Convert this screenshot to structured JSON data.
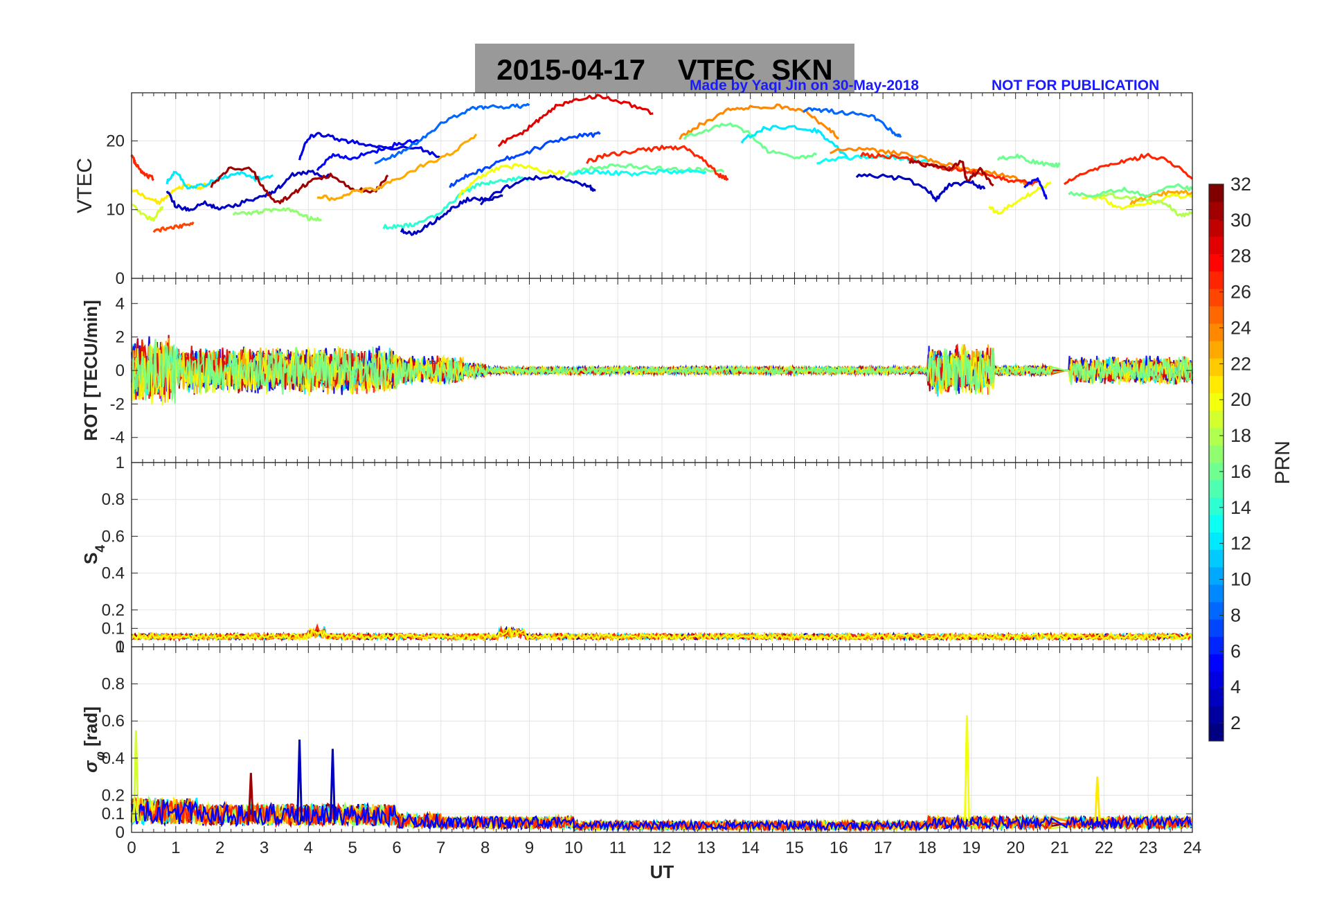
{
  "header": {
    "title": "2015-04-17    VTEC  SKN",
    "credit": "Made by Yaqi Jin on 30-May-2018",
    "notice": "NOT FOR PUBLICATION"
  },
  "colors": {
    "title_box": "#999999",
    "credit_text": "#1a1aff",
    "colormap": "jet"
  },
  "chart_data": {
    "type": "line",
    "x": {
      "label": "UT",
      "lim": [
        0,
        24
      ],
      "ticks": [
        0,
        1,
        2,
        3,
        4,
        5,
        6,
        7,
        8,
        9,
        10,
        11,
        12,
        13,
        14,
        15,
        16,
        17,
        18,
        19,
        20,
        21,
        22,
        23,
        24
      ]
    },
    "colorbar": {
      "label": "PRN",
      "lim": [
        1,
        32
      ],
      "ticks": [
        2,
        4,
        6,
        8,
        10,
        12,
        14,
        16,
        18,
        20,
        22,
        24,
        26,
        28,
        30,
        32
      ]
    },
    "panels": [
      {
        "id": "vtec",
        "ylabel": "VTEC",
        "ylim": [
          0,
          27
        ],
        "yticks": [
          0,
          10,
          20
        ],
        "grid": true
      },
      {
        "id": "rot",
        "ylabel": "ROT [TECU/min]",
        "ylim": [
          -5.5,
          5.5
        ],
        "yticks": [
          -4,
          -2,
          0,
          2,
          4
        ],
        "grid": true
      },
      {
        "id": "s4",
        "ylabel": "S4",
        "ylim": [
          0,
          1
        ],
        "yticks": [
          0,
          0.1,
          0.2,
          0.4,
          0.6,
          0.8,
          1
        ],
        "grid": true
      },
      {
        "id": "sigphi",
        "ylabel": "σφ [rad]",
        "ylim": [
          0,
          1
        ],
        "yticks": [
          0,
          0.1,
          0.2,
          0.4,
          0.6,
          0.8,
          1
        ],
        "grid": true
      }
    ],
    "vtec_series": [
      {
        "prn": 27,
        "points": [
          [
            0,
            18
          ],
          [
            0.1,
            16.5
          ],
          [
            0.3,
            15
          ],
          [
            0.5,
            14.5
          ]
        ]
      },
      {
        "prn": 26,
        "points": [
          [
            0.5,
            7
          ],
          [
            0.8,
            7.2
          ],
          [
            1.1,
            7.5
          ],
          [
            1.4,
            8.2
          ]
        ]
      },
      {
        "prn": 19,
        "points": [
          [
            0,
            11
          ],
          [
            0.3,
            9
          ],
          [
            0.5,
            8.5
          ],
          [
            0.7,
            10.5
          ]
        ]
      },
      {
        "prn": 21,
        "points": [
          [
            0,
            13
          ],
          [
            0.3,
            12
          ],
          [
            0.6,
            11
          ],
          [
            0.9,
            12.5
          ],
          [
            1.2,
            13.5
          ],
          [
            1.5,
            13
          ],
          [
            1.8,
            14
          ]
        ]
      },
      {
        "prn": 3,
        "points": [
          [
            0.8,
            13
          ],
          [
            1,
            10.5
          ],
          [
            1.3,
            10
          ],
          [
            1.7,
            11
          ],
          [
            2,
            10
          ],
          [
            2.5,
            11
          ],
          [
            3,
            12
          ],
          [
            3.3,
            13
          ],
          [
            3.6,
            15
          ],
          [
            4,
            15.5
          ],
          [
            4.5,
            14.8
          ]
        ]
      },
      {
        "prn": 12,
        "points": [
          [
            0.8,
            14
          ],
          [
            1,
            15.5
          ],
          [
            1.3,
            13
          ],
          [
            1.6,
            13.5
          ],
          [
            2,
            14.5
          ],
          [
            2.4,
            15.5
          ],
          [
            2.8,
            14.5
          ],
          [
            3.2,
            15
          ]
        ]
      },
      {
        "prn": 31,
        "points": [
          [
            1.8,
            13.5
          ],
          [
            2.2,
            16
          ],
          [
            2.7,
            16
          ],
          [
            3,
            13
          ],
          [
            3.3,
            11
          ],
          [
            3.6,
            12
          ],
          [
            4,
            14
          ],
          [
            4.5,
            15
          ],
          [
            5,
            13
          ],
          [
            5.5,
            12.5
          ],
          [
            5.8,
            15
          ]
        ]
      },
      {
        "prn": 17,
        "points": [
          [
            2.3,
            9.5
          ],
          [
            2.8,
            9.5
          ],
          [
            3.2,
            10
          ],
          [
            3.6,
            10
          ],
          [
            4,
            8.8
          ],
          [
            4.3,
            8.5
          ]
        ]
      },
      {
        "prn": 4,
        "points": [
          [
            3.8,
            17.5
          ],
          [
            4,
            20.5
          ],
          [
            4.3,
            21
          ],
          [
            4.8,
            20
          ],
          [
            5.3,
            19.5
          ],
          [
            5.8,
            19
          ],
          [
            6.5,
            19
          ],
          [
            7,
            17.5
          ]
        ]
      },
      {
        "prn": 5,
        "points": [
          [
            4.2,
            16
          ],
          [
            4.6,
            18
          ],
          [
            5,
            17.5
          ],
          [
            5.5,
            18.5
          ],
          [
            6,
            19.5
          ],
          [
            6.5,
            20
          ]
        ]
      },
      {
        "prn": 23,
        "points": [
          [
            4.2,
            12
          ],
          [
            4.6,
            11.5
          ],
          [
            5,
            12.5
          ],
          [
            5.5,
            13
          ],
          [
            6,
            14.5
          ],
          [
            6.6,
            16.5
          ],
          [
            7.2,
            18
          ],
          [
            7.8,
            21
          ]
        ]
      },
      {
        "prn": 8,
        "points": [
          [
            5.5,
            17
          ],
          [
            6,
            18
          ],
          [
            6.5,
            20
          ],
          [
            7,
            22.5
          ],
          [
            7.6,
            24.5
          ],
          [
            8,
            25
          ],
          [
            8.6,
            25
          ],
          [
            9,
            25.2
          ]
        ]
      },
      {
        "prn": 14,
        "points": [
          [
            5.7,
            7.5
          ],
          [
            6.1,
            7.5
          ],
          [
            6.5,
            8
          ],
          [
            7,
            9.5
          ],
          [
            7.4,
            12
          ],
          [
            7.8,
            13.5
          ],
          [
            8.2,
            14
          ],
          [
            8.6,
            14.5
          ],
          [
            9,
            14.5
          ]
        ]
      },
      {
        "prn": 3,
        "points": [
          [
            6.1,
            7
          ],
          [
            6.4,
            6.5
          ],
          [
            6.8,
            8
          ],
          [
            7.2,
            10
          ],
          [
            7.6,
            11.5
          ],
          [
            8,
            11.5
          ],
          [
            8.4,
            12
          ]
        ]
      },
      {
        "prn": 7,
        "points": [
          [
            7.2,
            13.5
          ],
          [
            7.6,
            15
          ],
          [
            8,
            16
          ],
          [
            8.5,
            17.5
          ],
          [
            9,
            18.5
          ],
          [
            9.6,
            20
          ],
          [
            10.2,
            20.8
          ],
          [
            10.6,
            21
          ]
        ]
      },
      {
        "prn": 20,
        "points": [
          [
            7.4,
            12
          ],
          [
            7.8,
            14.5
          ],
          [
            8.3,
            16
          ],
          [
            8.8,
            16.5
          ],
          [
            9.4,
            15.5
          ],
          [
            9.8,
            15.5
          ]
        ]
      },
      {
        "prn": 3,
        "points": [
          [
            7.9,
            11
          ],
          [
            8.4,
            13
          ],
          [
            8.9,
            14.5
          ],
          [
            9.4,
            14.8
          ],
          [
            9.8,
            14.5
          ],
          [
            10.3,
            13.5
          ],
          [
            10.5,
            12.8
          ]
        ]
      },
      {
        "prn": 29,
        "points": [
          [
            8.3,
            19.5
          ],
          [
            8.8,
            21
          ],
          [
            9.2,
            23
          ],
          [
            9.6,
            25
          ],
          [
            10,
            26
          ],
          [
            10.6,
            26.5
          ],
          [
            11.2,
            25.5
          ],
          [
            11.8,
            24
          ]
        ]
      },
      {
        "prn": 16,
        "points": [
          [
            9.8,
            15
          ],
          [
            10.4,
            16
          ],
          [
            11,
            16.5
          ],
          [
            11.6,
            16.2
          ],
          [
            12.2,
            15.8
          ],
          [
            12.8,
            15.8
          ],
          [
            13.4,
            15.5
          ]
        ]
      },
      {
        "prn": 13,
        "points": [
          [
            10,
            15.5
          ],
          [
            10.6,
            15.5
          ],
          [
            11.2,
            15.2
          ],
          [
            11.8,
            15.5
          ],
          [
            12.4,
            15.5
          ],
          [
            13,
            15.5
          ]
        ]
      },
      {
        "prn": 27,
        "points": [
          [
            10.3,
            17
          ],
          [
            10.8,
            18
          ],
          [
            11.4,
            18.5
          ],
          [
            12,
            19
          ],
          [
            12.5,
            19
          ],
          [
            12.9,
            17.5
          ],
          [
            13.3,
            15
          ],
          [
            13.5,
            14.5
          ]
        ]
      },
      {
        "prn": 24,
        "points": [
          [
            12.4,
            20.5
          ],
          [
            12.9,
            22.5
          ],
          [
            13.5,
            24.5
          ],
          [
            14,
            25
          ],
          [
            14.6,
            25
          ],
          [
            15.2,
            24.5
          ],
          [
            15.7,
            22
          ],
          [
            16,
            20.5
          ]
        ]
      },
      {
        "prn": 16,
        "points": [
          [
            12.5,
            20.5
          ],
          [
            13,
            21.5
          ],
          [
            13.5,
            22.5
          ],
          [
            14,
            21
          ],
          [
            14.4,
            18.5
          ],
          [
            15,
            17.5
          ],
          [
            15.5,
            18
          ]
        ]
      },
      {
        "prn": 12,
        "points": [
          [
            13.8,
            20
          ],
          [
            14.3,
            21.8
          ],
          [
            15,
            22
          ],
          [
            15.5,
            21.5
          ],
          [
            15.8,
            20
          ],
          [
            16.2,
            17.5
          ]
        ]
      },
      {
        "prn": 8,
        "points": [
          [
            15.2,
            24.5
          ],
          [
            15.6,
            24.5
          ],
          [
            16.2,
            24
          ],
          [
            16.8,
            23.5
          ],
          [
            17.2,
            21.5
          ],
          [
            17.4,
            20.5
          ]
        ]
      },
      {
        "prn": 24,
        "points": [
          [
            15.8,
            18.5
          ],
          [
            16.4,
            18.8
          ],
          [
            17,
            18.5
          ],
          [
            17.6,
            18
          ],
          [
            18.2,
            17
          ],
          [
            18.8,
            16
          ],
          [
            19.4,
            15.5
          ],
          [
            20,
            14.5
          ],
          [
            20.4,
            13.5
          ]
        ]
      },
      {
        "prn": 13,
        "points": [
          [
            15.5,
            17
          ],
          [
            16.2,
            17.5
          ],
          [
            16.8,
            17.8
          ],
          [
            17.4,
            17.5
          ],
          [
            18,
            17
          ]
        ]
      },
      {
        "prn": 27,
        "points": [
          [
            16.5,
            18
          ],
          [
            17,
            17.8
          ],
          [
            17.5,
            17.5
          ],
          [
            18,
            16.5
          ],
          [
            18.5,
            16
          ],
          [
            19,
            15.5
          ],
          [
            19.6,
            14.8
          ],
          [
            20,
            14
          ],
          [
            20.5,
            14
          ]
        ]
      },
      {
        "prn": 31,
        "points": [
          [
            17.6,
            17
          ],
          [
            18,
            16.5
          ],
          [
            18.5,
            16
          ],
          [
            18.8,
            17
          ],
          [
            18.9,
            14
          ],
          [
            19.2,
            16
          ],
          [
            19.5,
            13.5
          ]
        ]
      },
      {
        "prn": 3,
        "points": [
          [
            16.4,
            15
          ],
          [
            17,
            14.8
          ],
          [
            17.5,
            14.5
          ],
          [
            18,
            13
          ],
          [
            18.2,
            11.5
          ],
          [
            18.5,
            13.5
          ],
          [
            19,
            14
          ],
          [
            19.3,
            13
          ]
        ]
      },
      {
        "prn": 16,
        "points": [
          [
            19.6,
            17.5
          ],
          [
            20,
            17.8
          ],
          [
            20.4,
            17
          ],
          [
            20.8,
            16.5
          ],
          [
            21,
            16.5
          ]
        ]
      },
      {
        "prn": 20,
        "points": [
          [
            19.4,
            10.5
          ],
          [
            19.6,
            9.5
          ],
          [
            20,
            11
          ],
          [
            20.4,
            12.5
          ],
          [
            20.8,
            14
          ]
        ]
      },
      {
        "prn": 5,
        "points": [
          [
            20.2,
            13.5
          ],
          [
            20.5,
            14.5
          ],
          [
            20.7,
            11.5
          ]
        ]
      },
      {
        "prn": 27,
        "points": [
          [
            21.1,
            14
          ],
          [
            21.5,
            15
          ],
          [
            22,
            16.5
          ],
          [
            22.5,
            17
          ],
          [
            23,
            18
          ],
          [
            23.5,
            17
          ],
          [
            24,
            14.5
          ]
        ]
      },
      {
        "prn": 20,
        "points": [
          [
            21.5,
            12
          ],
          [
            22,
            11.5
          ],
          [
            22.4,
            10
          ],
          [
            23,
            11
          ],
          [
            23.6,
            12
          ],
          [
            24,
            12
          ]
        ]
      },
      {
        "prn": 18,
        "points": [
          [
            21.8,
            12
          ],
          [
            22.3,
            12
          ],
          [
            22.8,
            11.5
          ],
          [
            23.4,
            11
          ],
          [
            23.7,
            9
          ],
          [
            24,
            9.5
          ]
        ]
      },
      {
        "prn": 23,
        "points": [
          [
            22.6,
            11
          ],
          [
            23,
            12
          ],
          [
            23.5,
            12.5
          ],
          [
            24,
            12.5
          ]
        ]
      },
      {
        "prn": 16,
        "points": [
          [
            21.2,
            12.5
          ],
          [
            21.8,
            12
          ],
          [
            22.4,
            13
          ],
          [
            23,
            12
          ],
          [
            23.6,
            13.5
          ],
          [
            24,
            13
          ]
        ]
      }
    ],
    "sigphi_spikes": [
      {
        "prn": 19,
        "x": 0.1,
        "y": 0.55
      },
      {
        "prn": 3,
        "x": 3.8,
        "y": 0.5
      },
      {
        "prn": 3,
        "x": 4.55,
        "y": 0.45
      },
      {
        "prn": 31,
        "x": 2.7,
        "y": 0.32
      },
      {
        "prn": 20,
        "x": 18.9,
        "y": 0.63
      },
      {
        "prn": 21,
        "x": 21.85,
        "y": 0.3
      }
    ]
  }
}
